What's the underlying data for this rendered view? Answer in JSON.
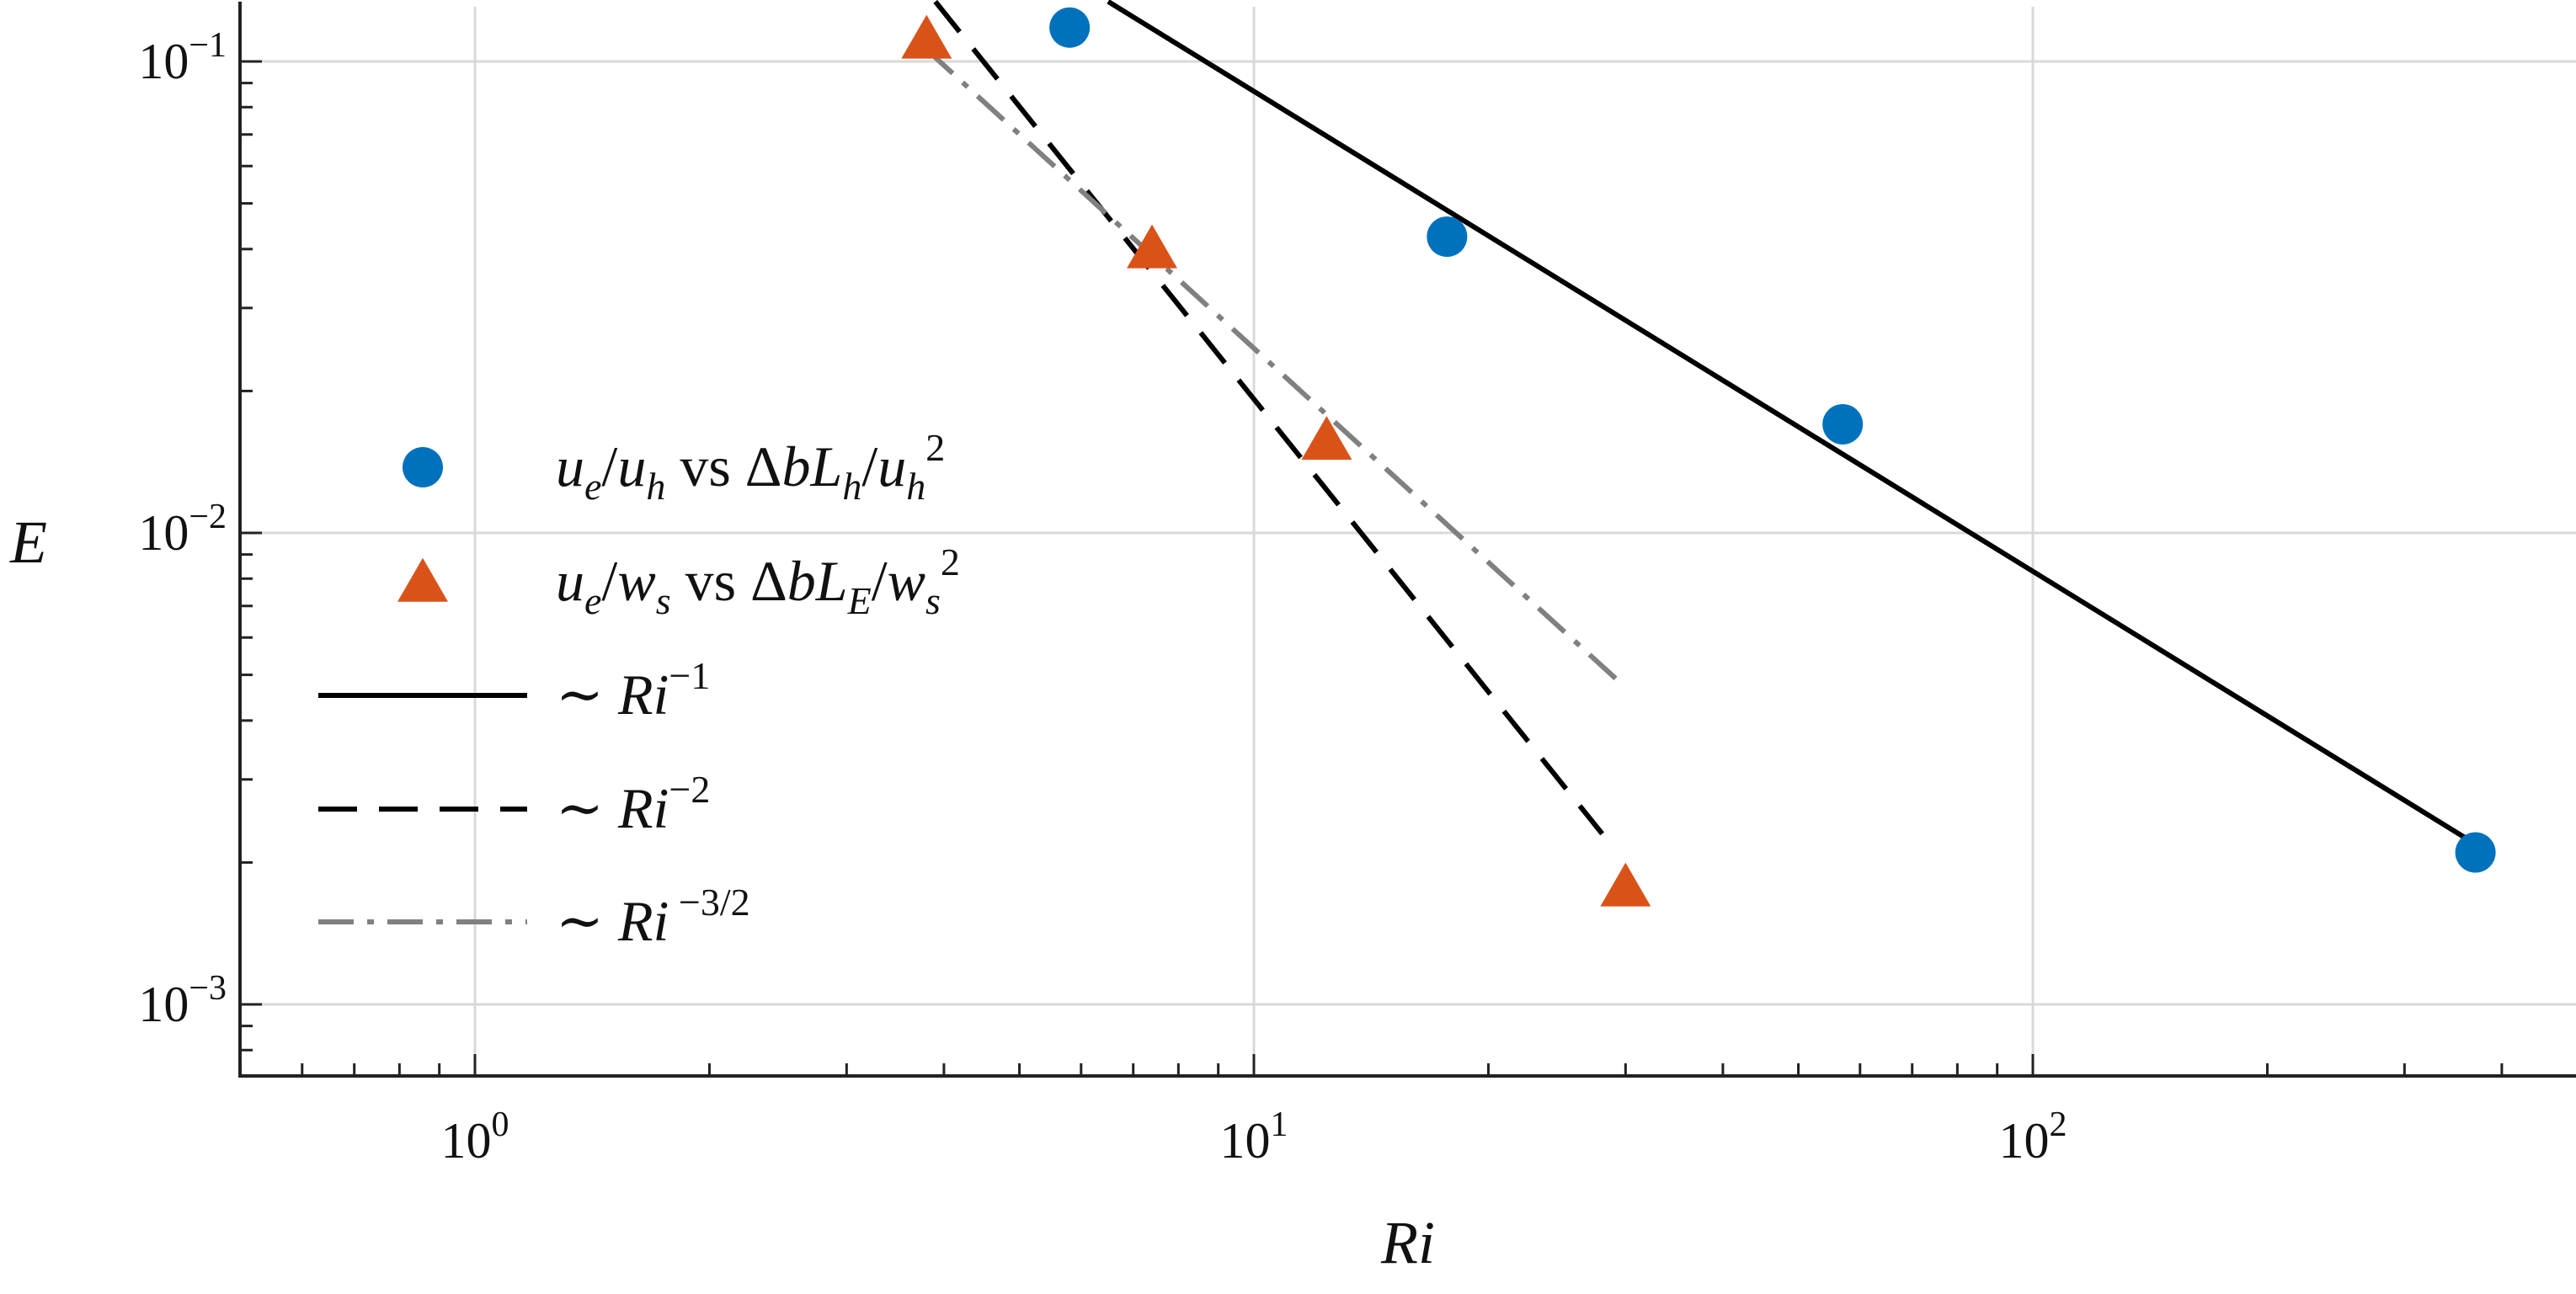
{
  "chart_data": {
    "type": "scatter",
    "title": "",
    "xlabel": "Ri",
    "ylabel": "E",
    "x_scale": "log",
    "y_scale": "log",
    "xlim": [
      0.5,
      500
    ],
    "ylim": [
      0.00055,
      0.13
    ],
    "grid": true,
    "x_ticks": [
      {
        "value": 1,
        "base": "10",
        "exp": "0"
      },
      {
        "value": 10,
        "base": "10",
        "exp": "1"
      },
      {
        "value": 100,
        "base": "10",
        "exp": "2"
      }
    ],
    "y_ticks": [
      {
        "value": 0.001,
        "base": "10",
        "exp": "−3"
      },
      {
        "value": 0.01,
        "base": "10",
        "exp": "−2"
      },
      {
        "value": 0.1,
        "base": "10",
        "exp": "−1"
      }
    ],
    "legend_position": "left",
    "series": [
      {
        "id": "circles",
        "kind": "marker",
        "marker": "circle",
        "color": "#0072bd",
        "points": [
          {
            "x": 5.8,
            "y": 0.118
          },
          {
            "x": 17.7,
            "y": 0.0425
          },
          {
            "x": 57,
            "y": 0.017
          },
          {
            "x": 370,
            "y": 0.0021
          }
        ]
      },
      {
        "id": "triangles",
        "kind": "marker",
        "marker": "triangle",
        "color": "#d95319",
        "points": [
          {
            "x": 3.8,
            "y": 0.11
          },
          {
            "x": 7.4,
            "y": 0.0395
          },
          {
            "x": 12.4,
            "y": 0.0155
          },
          {
            "x": 30,
            "y": 0.00175
          }
        ]
      },
      {
        "id": "ri-1",
        "kind": "line",
        "style": "solid",
        "color": "#000000",
        "points": [
          {
            "x": 6.5,
            "y": 0.134
          },
          {
            "x": 360,
            "y": 0.00225
          }
        ]
      },
      {
        "id": "ri-2",
        "kind": "line",
        "style": "dashed",
        "color": "#000000",
        "points": [
          {
            "x": 3.9,
            "y": 0.134
          },
          {
            "x": 28,
            "y": 0.0023
          }
        ]
      },
      {
        "id": "ri-3-2",
        "kind": "line",
        "style": "dashdot",
        "color": "#808080",
        "points": [
          {
            "x": 3.8,
            "y": 0.106
          },
          {
            "x": 30,
            "y": 0.0047
          }
        ]
      }
    ],
    "legend": [
      {
        "series": "circles",
        "label_parts": [
          {
            "t": "u",
            "style": "it"
          },
          {
            "t": "e",
            "style": "sub"
          },
          {
            "t": "/",
            "style": "n"
          },
          {
            "t": "u",
            "style": "it"
          },
          {
            "t": "h",
            "style": "sub"
          },
          {
            "t": " vs ",
            "style": "n"
          },
          {
            "t": "Δ",
            "style": "n"
          },
          {
            "t": "bL",
            "style": "it"
          },
          {
            "t": "h",
            "style": "sub"
          },
          {
            "t": "/",
            "style": "n"
          },
          {
            "t": "u",
            "style": "it"
          },
          {
            "t": "h",
            "style": "sub"
          },
          {
            "t": "2",
            "style": "sup"
          }
        ]
      },
      {
        "series": "triangles",
        "label_parts": [
          {
            "t": "u",
            "style": "it"
          },
          {
            "t": "e",
            "style": "sub"
          },
          {
            "t": "/",
            "style": "n"
          },
          {
            "t": "w",
            "style": "it"
          },
          {
            "t": "s",
            "style": "sub"
          },
          {
            "t": " vs ",
            "style": "n"
          },
          {
            "t": "Δ",
            "style": "n"
          },
          {
            "t": "bL",
            "style": "it"
          },
          {
            "t": "E",
            "style": "sub"
          },
          {
            "t": "/",
            "style": "n"
          },
          {
            "t": "w",
            "style": "it"
          },
          {
            "t": "s",
            "style": "sub"
          },
          {
            "t": "2",
            "style": "sup"
          }
        ]
      },
      {
        "series": "ri-1",
        "label_parts": [
          {
            "t": "∼ ",
            "style": "n"
          },
          {
            "t": "Ri",
            "style": "it"
          },
          {
            "t": "−1",
            "style": "sup"
          }
        ]
      },
      {
        "series": "ri-2",
        "label_parts": [
          {
            "t": "∼ ",
            "style": "n"
          },
          {
            "t": "Ri",
            "style": "it"
          },
          {
            "t": "−2",
            "style": "sup"
          }
        ]
      },
      {
        "series": "ri-3-2",
        "label_parts": [
          {
            "t": "∼ ",
            "style": "n"
          },
          {
            "t": "Ri",
            "style": "it"
          },
          {
            "t": " −3/2",
            "style": "sup"
          }
        ]
      }
    ]
  }
}
